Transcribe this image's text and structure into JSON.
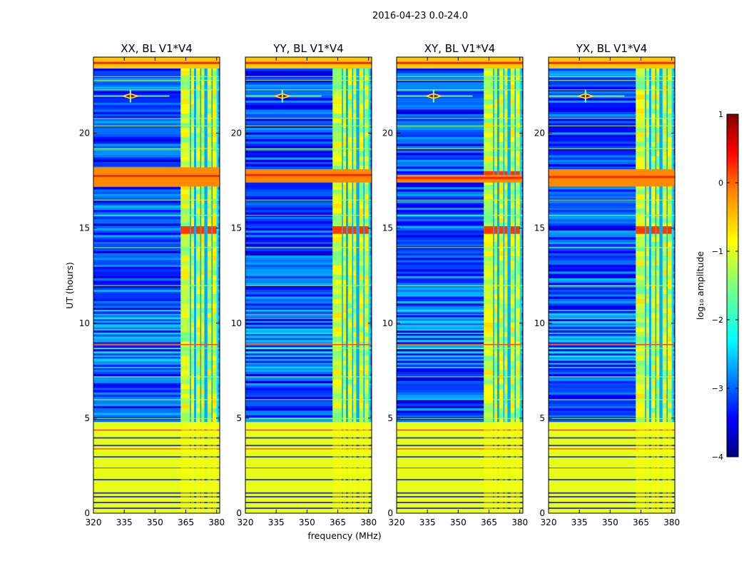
{
  "figure": {
    "suptitle": "2016-04-23 0.0-24.0"
  },
  "chart_data": {
    "type": "heatmap",
    "description_free": true,
    "xlabel": "frequency (MHz)",
    "ylabel": "UT (hours)",
    "xlim": [
      320,
      381.5
    ],
    "ylim": [
      0,
      24
    ],
    "xticks": [
      320,
      335,
      350,
      365,
      380
    ],
    "yticks": [
      0,
      5,
      10,
      15,
      20
    ],
    "panels": [
      {
        "title": "XX, BL V1*V4",
        "streak_band": [
          17.2,
          18.2
        ],
        "streak_full_width": true
      },
      {
        "title": "YY, BL V1*V4",
        "streak_band": [
          17.4,
          18.1
        ],
        "streak_full_width": true
      },
      {
        "title": "XY, BL V1*V4",
        "streak_band": [
          17.4,
          17.8
        ],
        "streak_full_width": false
      },
      {
        "title": "YX, BL V1*V4",
        "streak_band": [
          17.2,
          18.1
        ],
        "streak_full_width": true
      }
    ],
    "features": {
      "flagged_band_hours": [
        0,
        4.8
      ],
      "bright_freq_band_mhz": [
        362.5,
        381
      ],
      "bright_subbands_mhz": [
        [
          362.5,
          367
        ],
        [
          367.5,
          369
        ],
        [
          370,
          372
        ],
        [
          372.5,
          374
        ],
        [
          375.5,
          377.5
        ],
        [
          378,
          380
        ]
      ],
      "point_source": {
        "freq_mhz": 338,
        "ut_hours": 21.95
      },
      "top_flag_hours": [
        23.4,
        24
      ]
    },
    "colorbar": {
      "label": "log₁₀ amplitude",
      "range": [
        -4,
        1
      ],
      "ticks": [
        "1",
        "0",
        "−1",
        "−2",
        "−3",
        "−4"
      ],
      "colormap": [
        "#00007f",
        "#0000ff",
        "#007fff",
        "#00ffff",
        "#7fff7f",
        "#ffff00",
        "#ff7f00",
        "#ff0000",
        "#7f0000"
      ]
    }
  }
}
